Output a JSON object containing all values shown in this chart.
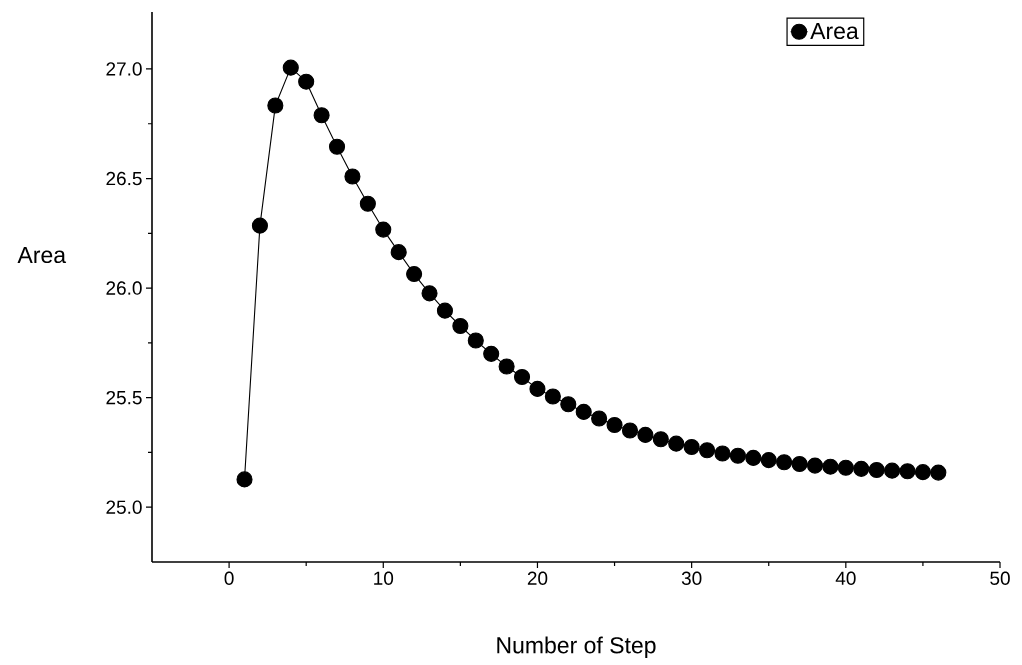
{
  "chart_data": {
    "type": "line",
    "xlabel": "Number of Step",
    "ylabel": "Area",
    "x": [
      1,
      2,
      3,
      4,
      5,
      6,
      7,
      8,
      9,
      10,
      11,
      12,
      13,
      14,
      15,
      16,
      17,
      18,
      19,
      20,
      21,
      22,
      23,
      24,
      25,
      26,
      27,
      28,
      29,
      30,
      31,
      32,
      33,
      34,
      35,
      36,
      37,
      38,
      39,
      40,
      41,
      42,
      43,
      44,
      45,
      46
    ],
    "series": [
      {
        "name": "Area",
        "color": "#000000",
        "values": [
          25.127,
          26.285,
          26.833,
          27.006,
          26.942,
          26.789,
          26.645,
          26.509,
          26.385,
          26.267,
          26.164,
          26.064,
          25.976,
          25.897,
          25.827,
          25.761,
          25.7,
          25.642,
          25.594,
          25.54,
          25.505,
          25.47,
          25.435,
          25.405,
          25.375,
          25.35,
          25.33,
          25.31,
          25.29,
          25.275,
          25.26,
          25.245,
          25.235,
          25.225,
          25.215,
          25.205,
          25.197,
          25.19,
          25.185,
          25.18,
          25.175,
          25.17,
          25.167,
          25.164,
          25.16,
          25.158
        ]
      }
    ],
    "xlim": [
      -5,
      50
    ],
    "ylim": [
      24.75,
      27.26
    ],
    "xticks": [
      0,
      10,
      20,
      30,
      40,
      50
    ],
    "yticks": [
      {
        "value": 25.0,
        "label": "25.0"
      },
      {
        "value": 25.5,
        "label": "25.5"
      },
      {
        "value": 26.0,
        "label": "26.0"
      },
      {
        "value": 26.5,
        "label": "26.5"
      },
      {
        "value": 27.0,
        "label": "27.0"
      }
    ],
    "grid": false,
    "legend": "top right",
    "marker": "circle",
    "line_style": "solid"
  }
}
